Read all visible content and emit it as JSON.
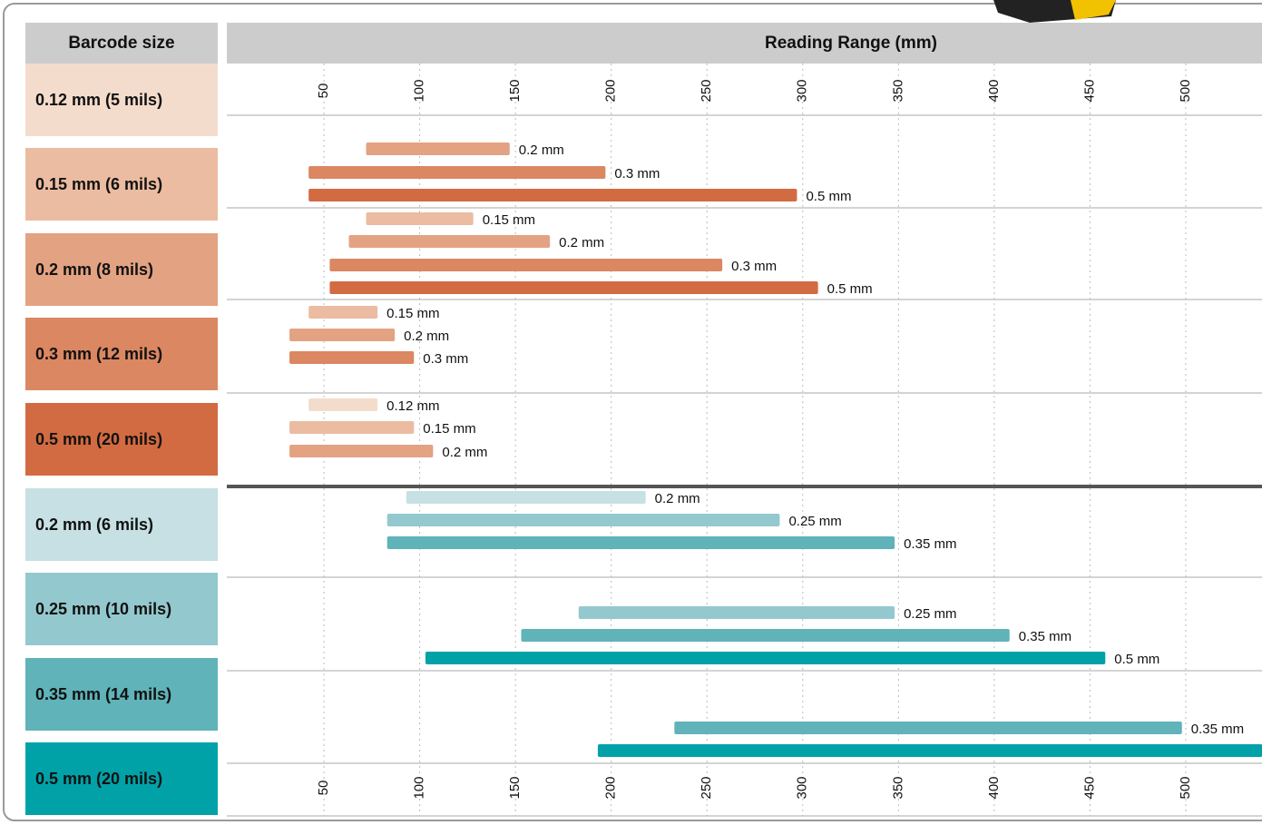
{
  "chart_data": {
    "type": "range_bar",
    "row_header": "Barcode size",
    "title": "Reading Range (mm)",
    "rows": [
      {
        "label": "0.12 mm (5 mils)",
        "color": "#f4dccd"
      },
      {
        "label": "0.15 mm (6 mils)",
        "color": "#ebbca1"
      },
      {
        "label": "0.2 mm (8 mils)",
        "color": "#e3a282"
      },
      {
        "label": "0.3 mm (12 mils)",
        "color": "#db8762"
      },
      {
        "label": "0.5 mm (20 mils)",
        "color": "#d26b42"
      },
      {
        "label": "0.2 mm (6 mils)",
        "color": "#c6e0e3"
      },
      {
        "label": "0.25 mm (10 mils)",
        "color": "#93c9ce"
      },
      {
        "label": "0.35 mm (14 mils)",
        "color": "#5fb3b9"
      },
      {
        "label": "0.5 mm (20 mils)",
        "color": "#00a2a8"
      }
    ],
    "xlim": [
      0,
      540
    ],
    "xticks": [
      50,
      100,
      150,
      200,
      250,
      300,
      350,
      400,
      450,
      500
    ],
    "grid": true,
    "groups": [
      {
        "bars": [
          {
            "name": "0.2 mm",
            "color": "#e3a282",
            "values": [
              72,
              147
            ]
          },
          {
            "name": "0.3 mm",
            "color": "#db8762",
            "values": [
              42,
              197
            ]
          },
          {
            "name": "0.5 mm",
            "color": "#d26b42",
            "values": [
              42,
              297
            ]
          }
        ]
      },
      {
        "bars": [
          {
            "name": "0.15 mm",
            "color": "#ebbca1",
            "values": [
              72,
              128
            ]
          },
          {
            "name": "0.2 mm",
            "color": "#e3a282",
            "values": [
              63,
              168
            ]
          },
          {
            "name": "0.3 mm",
            "color": "#db8762",
            "values": [
              53,
              258
            ]
          },
          {
            "name": "0.5 mm",
            "color": "#d26b42",
            "values": [
              53,
              308
            ]
          }
        ]
      },
      {
        "bars": [
          {
            "name": "0.15 mm",
            "color": "#ebbca1",
            "values": [
              42,
              78
            ]
          },
          {
            "name": "0.2 mm",
            "color": "#e3a282",
            "values": [
              32,
              87
            ]
          },
          {
            "name": "0.3 mm",
            "color": "#db8762",
            "values": [
              32,
              97
            ]
          }
        ]
      },
      {
        "bars": [
          {
            "name": "0.12 mm",
            "color": "#f4dccd",
            "values": [
              42,
              78
            ]
          },
          {
            "name": "0.15 mm",
            "color": "#ebbca1",
            "values": [
              32,
              97
            ]
          },
          {
            "name": "0.2 mm",
            "color": "#e3a282",
            "values": [
              32,
              107
            ]
          }
        ]
      },
      {
        "bars": [
          {
            "name": "0.2 mm",
            "color": "#c6e0e3",
            "values": [
              93,
              218
            ]
          },
          {
            "name": "0.25 mm",
            "color": "#93c9ce",
            "values": [
              83,
              288
            ]
          },
          {
            "name": "0.35 mm",
            "color": "#5fb3b9",
            "values": [
              83,
              348
            ]
          }
        ]
      },
      {
        "bars": [
          {
            "name": "0.25 mm",
            "color": "#93c9ce",
            "values": [
              183,
              348
            ]
          },
          {
            "name": "0.35 mm",
            "color": "#5fb3b9",
            "values": [
              153,
              408
            ]
          },
          {
            "name": "0.5 mm",
            "color": "#00a2a8",
            "values": [
              103,
              458
            ]
          }
        ]
      },
      {
        "bars": [
          {
            "name": "0.35 mm",
            "color": "#5fb3b9",
            "values": [
              233,
              498
            ]
          },
          {
            "name": "0.5 mm",
            "color": "#00a2a8",
            "values": [
              193,
              540
            ]
          }
        ]
      }
    ]
  }
}
